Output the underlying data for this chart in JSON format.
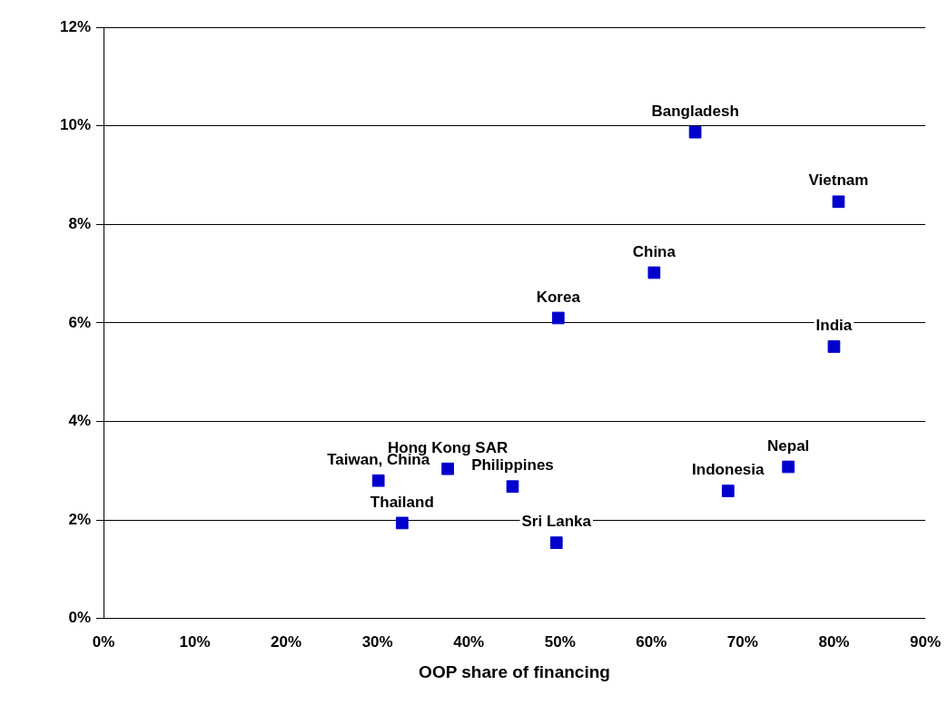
{
  "chart_data": {
    "type": "scatter",
    "xlabel": "OOP share of financing",
    "marker": "square",
    "grid": "y",
    "legend": false,
    "series": [
      {
        "color": "#0000cc",
        "x": [
          64.8,
          80.5,
          60.3,
          49.8,
          80.0,
          75.0,
          68.4,
          37.7,
          44.8,
          30.1,
          32.7,
          49.6
        ],
        "values": [
          9.87,
          8.46,
          7.02,
          6.1,
          5.52,
          3.08,
          2.59,
          3.04,
          2.68,
          2.8,
          1.94,
          1.54
        ]
      }
    ],
    "xlim": [
      0,
      90
    ],
    "xticks": [
      {
        "value": 0,
        "label": "0%"
      },
      {
        "value": 10,
        "label": "10%"
      },
      {
        "value": 20,
        "label": "20%"
      },
      {
        "value": 30,
        "label": "30%"
      },
      {
        "value": 40,
        "label": "40%"
      },
      {
        "value": 50,
        "label": "50%"
      },
      {
        "value": 60,
        "label": "60%"
      },
      {
        "value": 70,
        "label": "70%"
      },
      {
        "value": 80,
        "label": "80%"
      },
      {
        "value": 90,
        "label": "90%"
      }
    ],
    "ylim": [
      0,
      12
    ],
    "yticks": [
      {
        "value": 0,
        "label": "0%"
      },
      {
        "value": 2,
        "label": "2%"
      },
      {
        "value": 4,
        "label": "4%"
      },
      {
        "value": 6,
        "label": "6%"
      },
      {
        "value": 8,
        "label": "8%"
      },
      {
        "value": 10,
        "label": "10%"
      },
      {
        "value": 12,
        "label": "12%"
      }
    ],
    "annotations": [
      {
        "text": "Bangladesh",
        "x": 64.8,
        "y": 9.87
      },
      {
        "text": "Vietnam",
        "x": 80.5,
        "y": 8.46
      },
      {
        "text": "China",
        "x": 60.3,
        "y": 7.02
      },
      {
        "text": "Korea",
        "x": 49.8,
        "y": 6.1
      },
      {
        "text": "India",
        "x": 80.0,
        "y": 5.52
      },
      {
        "text": "Nepal",
        "x": 75.0,
        "y": 3.08
      },
      {
        "text": "Indonesia",
        "x": 68.4,
        "y": 2.59
      },
      {
        "text": "Hong Kong SAR",
        "x": 37.7,
        "y": 3.04
      },
      {
        "text": "Philippines",
        "x": 44.8,
        "y": 2.68
      },
      {
        "text": "Taiwan, China",
        "x": 30.1,
        "y": 2.8
      },
      {
        "text": "Thailand",
        "x": 32.7,
        "y": 1.94
      },
      {
        "text": "Sri Lanka",
        "x": 49.6,
        "y": 1.54
      }
    ]
  }
}
